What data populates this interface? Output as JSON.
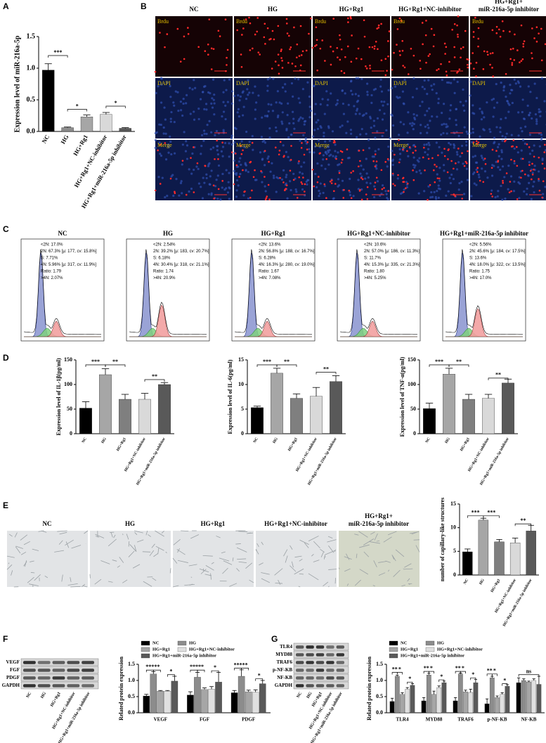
{
  "panel_letters": [
    "A",
    "B",
    "C",
    "D",
    "E",
    "F",
    "G"
  ],
  "micrographs": {
    "groups": [
      "NC",
      "HG",
      "HG+Rg1",
      "HG+Rg1+NC-inhibitor",
      [
        "HG+Rg1+",
        "miR-216a-5p inhibitor"
      ]
    ],
    "channels": [
      "Brdu",
      "DAPI",
      "Merge"
    ]
  },
  "flow": {
    "groups": [
      {
        "title": "NC",
        "stats": [
          "<2N: 17.0%",
          "2N: 67.3% [μ: 177, cv: 15.8%]",
          "S: 7.71%",
          "4N: 5.96% [μ: 317, cv: 11.9%]",
          "Ratio: 1.79",
          ">4N: 2.07%"
        ]
      },
      {
        "title": "HG",
        "stats": [
          "<2N: 2.54%",
          "2N: 39.2% [μ: 183, cv: 20.7%]",
          "S: 6.18%",
          "4N: 30.4% [μ: 318, cv: 21.1%]",
          "Ratio: 1.74",
          ">4N: 20.9%"
        ]
      },
      {
        "title": "HG+Rg1",
        "stats": [
          "<2N: 13.6%",
          "2N: 56.8% [μ: 188, cv: 16.7%]",
          "S: 6.28%",
          "4N: 16.3% [μ: 280, cv: 19.0%]",
          "Ratio: 1.67",
          ">4N: 7.08%"
        ]
      },
      {
        "title": "HG+Rg1+NC-inhibitor",
        "stats": [
          "<2N: 10.6%",
          "2N: 57.0% [μ: 186, cv: 11.3%]",
          "S: 11.7%",
          "4N: 15.3% [μ: 335, cv: 21.3%]",
          "Ratio: 1.80",
          ">4N: 5.25%"
        ]
      },
      {
        "title": "HG+Rg1+miR-216a-5p inhibitor",
        "stats": [
          "<2N: 5.56%",
          "2N: 45.6% [μ: 184, cv: 17.5%]",
          "S: 13.6%",
          "4N: 18.0% [μ: 322, cv: 13.5%]",
          "Ratio: 1.75",
          ">4N: 17.0%"
        ]
      }
    ]
  },
  "tube_images": {
    "groups": [
      "NC",
      "HG",
      "HG+Rg1",
      "HG+Rg1+NC-inhibitor",
      [
        "HG+Rg1+",
        "miR-216a-5p inhibitor"
      ]
    ]
  },
  "blot_f": {
    "proteins": [
      "VEGF",
      "FGF",
      "PDGF",
      "GAPDH"
    ],
    "lanes": [
      "NC",
      "HG",
      "HG+Rg1",
      "HG+Rg1+NC-inhibitor",
      "HG+Rg1+miR-216a-5p inhibitor"
    ]
  },
  "blot_g": {
    "proteins": [
      "TLR4",
      "MYD88",
      "TRAF6",
      "p-NF-KB",
      "NF-KB",
      "GAPDH"
    ],
    "lanes": [
      "NC",
      "HG",
      "HG+Rg1",
      "HG+Rg1+NC-inhibitor",
      "HG+Rg1+miR-216a-5p inhibitor"
    ]
  },
  "chart_data": [
    {
      "type": "bar",
      "ylabel": "Expression level of miR-216a-5p",
      "categories": [
        "NC",
        "HG",
        "HG+Rg1",
        "HG+Rg1+NC-inhibitor",
        "HG+Rg1+miR-216a-5p inhibitor"
      ],
      "values": [
        0.97,
        0.06,
        0.23,
        0.27,
        0.05
      ],
      "errors": [
        0.1,
        0.01,
        0.03,
        0.03,
        0.01
      ],
      "colors": [
        "#000000",
        "#8c8c8c",
        "#a6a6a6",
        "#d9d9d9",
        "#595959"
      ],
      "ylim": [
        0,
        1.5
      ],
      "yticks": [
        {
          "value": 0,
          "label": "0.0"
        },
        {
          "value": 0.5,
          "label": "0.5"
        },
        {
          "value": 1.0,
          "label": "1.0"
        },
        {
          "value": 1.5,
          "label": "1.5"
        }
      ],
      "annotations": [
        {
          "text": "***",
          "between": [
            0,
            1
          ],
          "y": 1.2
        },
        {
          "text": "*",
          "between": [
            1,
            2
          ],
          "y": 0.35
        },
        {
          "text": "*",
          "between": [
            3,
            4
          ],
          "y": 0.4
        }
      ]
    },
    {
      "type": "bar",
      "ylabel": "Expression level of IL-1β(pg/ml)",
      "categories": [
        "NC",
        "HG",
        "HG+Rg1",
        "HG+Rg1+NC-inhibitor",
        "HG+Rg1+miR-216a-5p inhibitor"
      ],
      "values": [
        52,
        120,
        70,
        70,
        100
      ],
      "errors": [
        13,
        12,
        10,
        12,
        4
      ],
      "colors": [
        "#000000",
        "#a6a6a6",
        "#7f7f7f",
        "#d9d9d9",
        "#595959"
      ],
      "ylim": [
        0,
        150
      ],
      "yticks": [
        0,
        50,
        100,
        150
      ],
      "annotations": [
        {
          "text": "***",
          "between": [
            0,
            1
          ],
          "y": 140
        },
        {
          "text": "**",
          "between": [
            1,
            2
          ],
          "y": 140
        },
        {
          "text": "**",
          "between": [
            3,
            4
          ],
          "y": 110
        }
      ]
    },
    {
      "type": "bar",
      "ylabel": "Expression level of IL-6(pg/ml)",
      "categories": [
        "NC",
        "HG",
        "HG+Rg1",
        "HG+Rg1+NC-inhibitor",
        "HG+Rg1+miR-216a-5p inhibitor"
      ],
      "values": [
        5.3,
        12.3,
        7.2,
        7.6,
        10.6
      ],
      "errors": [
        0.3,
        1.0,
        0.9,
        1.8,
        1.2
      ],
      "colors": [
        "#000000",
        "#a6a6a6",
        "#7f7f7f",
        "#d9d9d9",
        "#595959"
      ],
      "ylim": [
        0,
        15
      ],
      "yticks": [
        0,
        5,
        10,
        15
      ],
      "annotations": [
        {
          "text": "***",
          "between": [
            0,
            1
          ],
          "y": 14
        },
        {
          "text": "**",
          "between": [
            1,
            2
          ],
          "y": 14
        },
        {
          "text": "**",
          "between": [
            3,
            4
          ],
          "y": 12.5
        }
      ]
    },
    {
      "type": "bar",
      "ylabel": "Expression level of TNF-α(pg/ml)",
      "categories": [
        "NC",
        "HG",
        "HG+Rg1",
        "HG+Rg1+NC-inhibitor",
        "HG+Rg1+miR-216a-5p inhibitor"
      ],
      "values": [
        51,
        121,
        70,
        72,
        103
      ],
      "errors": [
        11,
        12,
        10,
        8,
        8
      ],
      "colors": [
        "#000000",
        "#a6a6a6",
        "#7f7f7f",
        "#d9d9d9",
        "#595959"
      ],
      "ylim": [
        0,
        150
      ],
      "yticks": [
        0,
        50,
        100,
        150
      ],
      "annotations": [
        {
          "text": "***",
          "between": [
            0,
            1
          ],
          "y": 140
        },
        {
          "text": "**",
          "between": [
            1,
            2
          ],
          "y": 140
        },
        {
          "text": "**",
          "between": [
            3,
            4
          ],
          "y": 113
        }
      ]
    },
    {
      "type": "bar",
      "ylabel": "number of capillary-like structures",
      "categories": [
        "NC",
        "HG",
        "HG+Rg1",
        "HG+Rg1+NC-inhibitor",
        "HG+Rg1+miR-216a-5p inhibitor"
      ],
      "values": [
        4.9,
        11.6,
        7.0,
        6.8,
        9.3
      ],
      "errors": [
        0.6,
        0.4,
        0.5,
        1.0,
        1.2
      ],
      "colors": [
        "#000000",
        "#a6a6a6",
        "#7f7f7f",
        "#d9d9d9",
        "#595959"
      ],
      "ylim": [
        0,
        15
      ],
      "yticks": [
        0,
        5,
        10,
        15
      ],
      "annotations": [
        {
          "text": "***",
          "between": [
            0,
            1
          ],
          "y": 12.5
        },
        {
          "text": "***",
          "between": [
            1,
            2
          ],
          "y": 12.5
        },
        {
          "text": "**",
          "between": [
            3,
            4
          ],
          "y": 10.8
        }
      ]
    },
    {
      "type": "grouped_bar",
      "ylabel": "Related protein expression",
      "categories": [
        "VEGF",
        "FGF",
        "PDGF"
      ],
      "series": [
        {
          "name": "NC",
          "color": "#000000",
          "values": [
            0.52,
            0.55,
            0.62
          ],
          "errors": [
            0.05,
            0.1,
            0.07
          ]
        },
        {
          "name": "HG",
          "color": "#8c8c8c",
          "values": [
            1.2,
            1.1,
            1.13
          ],
          "errors": [
            0.07,
            0.15,
            0.2
          ]
        },
        {
          "name": "HG+Rg1",
          "color": "#a6a6a6",
          "values": [
            0.67,
            0.72,
            0.65
          ],
          "errors": [
            0.02,
            0.05,
            0.05
          ]
        },
        {
          "name": "HG+Rg1+NC-inhibitor",
          "color": "#e0e0e0",
          "values": [
            0.67,
            0.73,
            0.64
          ],
          "errors": [
            0.02,
            0.08,
            0.07
          ]
        },
        {
          "name": "HG+Rg1+miR-216a-5p inhibitor",
          "color": "#595959",
          "values": [
            0.98,
            0.95,
            0.9
          ],
          "errors": [
            0.15,
            0.3,
            0.1
          ]
        }
      ],
      "ylim": [
        0,
        1.5
      ],
      "yticks": [
        {
          "value": 0,
          "label": "0.0"
        },
        {
          "value": 0.5,
          "label": "0.5"
        },
        {
          "value": 1.0,
          "label": "1.0"
        },
        {
          "value": 1.5,
          "label": "1.5"
        }
      ],
      "annotations": [
        {
          "text": "***",
          "category": 0,
          "between": [
            0,
            1
          ],
          "y": 1.32
        },
        {
          "text": "**",
          "category": 0,
          "between": [
            1,
            2
          ],
          "y": 1.32
        },
        {
          "text": "*",
          "category": 0,
          "between": [
            3,
            4
          ],
          "y": 1.18
        },
        {
          "text": "***",
          "category": 1,
          "between": [
            0,
            1
          ],
          "y": 1.32
        },
        {
          "text": "**",
          "category": 1,
          "between": [
            1,
            2
          ],
          "y": 1.32
        },
        {
          "text": "*",
          "category": 1,
          "between": [
            3,
            4
          ],
          "y": 1.3
        },
        {
          "text": "***",
          "category": 2,
          "between": [
            0,
            1
          ],
          "y": 1.38
        },
        {
          "text": "**",
          "category": 2,
          "between": [
            1,
            2
          ],
          "y": 1.38
        },
        {
          "text": "*",
          "category": 2,
          "between": [
            3,
            4
          ],
          "y": 1.05
        }
      ]
    },
    {
      "type": "grouped_bar",
      "ylabel": "Related protein expression",
      "categories": [
        "TLR4",
        "MYD88",
        "TRAF6",
        "p-NF-KB",
        "NF-KB"
      ],
      "series": [
        {
          "name": "NC",
          "color": "#000000",
          "values": [
            0.35,
            0.37,
            0.37,
            0.28,
            0.93
          ],
          "errors": [
            0.1,
            0.1,
            0.1,
            0.15,
            0.15
          ]
        },
        {
          "name": "HG",
          "color": "#8c8c8c",
          "values": [
            1.13,
            1.17,
            1.2,
            1.08,
            1.0
          ],
          "errors": [
            0.03,
            0.05,
            0.03,
            0.05,
            0.05
          ]
        },
        {
          "name": "HG+Rg1",
          "color": "#a6a6a6",
          "values": [
            0.57,
            0.57,
            0.65,
            0.47,
            0.95
          ],
          "errors": [
            0.05,
            0.1,
            0.05,
            0.05,
            0.03
          ]
        },
        {
          "name": "HG+Rg1+NC-inhibitor",
          "color": "#e0e0e0",
          "values": [
            0.73,
            0.78,
            0.63,
            0.57,
            1.0
          ],
          "errors": [
            0.05,
            0.05,
            0.1,
            0.05,
            0.05
          ]
        },
        {
          "name": "HG+Rg1+miR-216a-5p inhibitor",
          "color": "#595959",
          "values": [
            0.85,
            0.93,
            0.93,
            0.82,
            0.88
          ],
          "errors": [
            0.05,
            0.05,
            0.1,
            0.05,
            0.25
          ]
        }
      ],
      "ylim": [
        0,
        1.5
      ],
      "yticks": [
        {
          "value": 0,
          "label": "0.0"
        },
        {
          "value": 0.5,
          "label": "0.5"
        },
        {
          "value": 1.0,
          "label": "1.0"
        },
        {
          "value": 1.5,
          "label": "1.5"
        }
      ],
      "annotations": [
        {
          "text": "**",
          "category": 0,
          "between": [
            0,
            1
          ],
          "y": 1.25
        },
        {
          "text": "*",
          "category": 0,
          "between": [
            1,
            2
          ],
          "y": 1.25
        },
        {
          "text": "*",
          "category": 0,
          "between": [
            3,
            4
          ],
          "y": 0.95
        },
        {
          "text": "**",
          "category": 1,
          "between": [
            0,
            1
          ],
          "y": 1.28
        },
        {
          "text": "*",
          "category": 1,
          "between": [
            1,
            2
          ],
          "y": 1.28
        },
        {
          "text": "*",
          "category": 1,
          "between": [
            3,
            4
          ],
          "y": 1.02
        },
        {
          "text": "**",
          "category": 2,
          "between": [
            0,
            1
          ],
          "y": 1.28
        },
        {
          "text": "*",
          "category": 2,
          "between": [
            1,
            2
          ],
          "y": 1.28
        },
        {
          "text": "*",
          "category": 2,
          "between": [
            3,
            4
          ],
          "y": 1.08
        },
        {
          "text": "**",
          "category": 3,
          "between": [
            0,
            1
          ],
          "y": 1.2
        },
        {
          "text": "*",
          "category": 3,
          "between": [
            1,
            2
          ],
          "y": 1.2
        },
        {
          "text": "*",
          "category": 3,
          "between": [
            3,
            4
          ],
          "y": 0.9
        },
        {
          "text": "ns",
          "category": 4,
          "between": [
            0,
            4
          ],
          "y": 1.18
        }
      ]
    }
  ]
}
